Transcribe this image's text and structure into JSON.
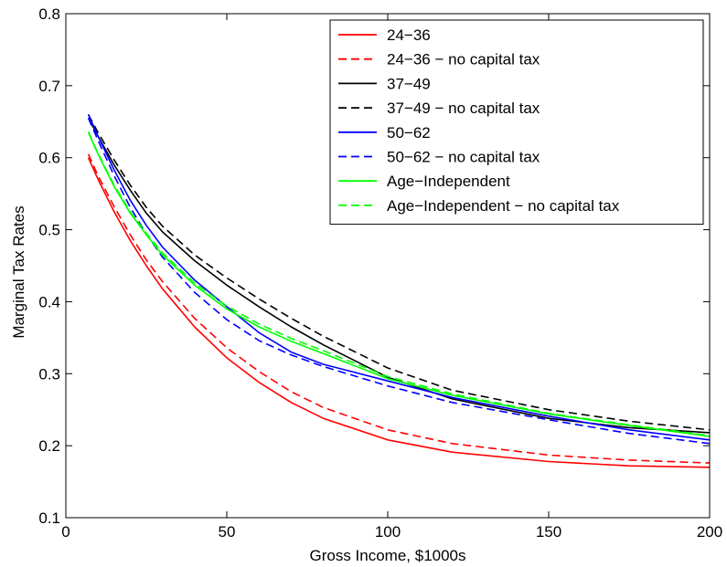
{
  "chart_data": {
    "type": "line",
    "title": "",
    "xlabel": "Gross Income, $1000s",
    "ylabel": "Marginal Tax Rates",
    "xlim": [
      0,
      200
    ],
    "ylim": [
      0.1,
      0.8
    ],
    "xticks": [
      0,
      50,
      100,
      150,
      200
    ],
    "yticks": [
      0.1,
      0.2,
      0.3,
      0.4,
      0.5,
      0.6,
      0.7,
      0.8
    ],
    "xtick_labels": [
      "0",
      "50",
      "100",
      "150",
      "200"
    ],
    "ytick_labels": [
      "0.1",
      "0.2",
      "0.3",
      "0.4",
      "0.5",
      "0.6",
      "0.7",
      "0.8"
    ],
    "grid": false,
    "legend_position": "top-right",
    "x": [
      7,
      10,
      15,
      20,
      25,
      30,
      40,
      50,
      60,
      70,
      80,
      100,
      120,
      150,
      175,
      200
    ],
    "series": [
      {
        "name": "24−36",
        "color": "#ff0000",
        "dash": "solid",
        "values": [
          0.6,
          0.57,
          0.525,
          0.485,
          0.45,
          0.418,
          0.365,
          0.322,
          0.288,
          0.26,
          0.238,
          0.208,
          0.191,
          0.178,
          0.172,
          0.17
        ]
      },
      {
        "name": "24−36 − no capital tax",
        "color": "#ff0000",
        "dash": "dashed",
        "values": [
          0.605,
          0.575,
          0.532,
          0.493,
          0.458,
          0.428,
          0.377,
          0.336,
          0.303,
          0.275,
          0.253,
          0.222,
          0.203,
          0.187,
          0.18,
          0.176
        ]
      },
      {
        "name": "37−49",
        "color": "#000000",
        "dash": "solid",
        "values": [
          0.655,
          0.63,
          0.59,
          0.555,
          0.523,
          0.497,
          0.457,
          0.423,
          0.393,
          0.365,
          0.34,
          0.295,
          0.265,
          0.238,
          0.225,
          0.218
        ]
      },
      {
        "name": "37−49 − no capital tax",
        "color": "#000000",
        "dash": "dashed",
        "values": [
          0.66,
          0.635,
          0.597,
          0.562,
          0.531,
          0.505,
          0.465,
          0.433,
          0.404,
          0.377,
          0.352,
          0.308,
          0.277,
          0.25,
          0.234,
          0.222
        ]
      },
      {
        "name": "50−62",
        "color": "#0000ff",
        "dash": "solid",
        "values": [
          0.66,
          0.63,
          0.583,
          0.541,
          0.506,
          0.476,
          0.43,
          0.393,
          0.357,
          0.33,
          0.313,
          0.29,
          0.267,
          0.241,
          0.222,
          0.208
        ]
      },
      {
        "name": "50−62 − no capital tax",
        "color": "#0000ff",
        "dash": "dashed",
        "values": [
          0.655,
          0.624,
          0.575,
          0.531,
          0.494,
          0.462,
          0.413,
          0.375,
          0.346,
          0.326,
          0.31,
          0.283,
          0.26,
          0.236,
          0.217,
          0.203
        ]
      },
      {
        "name": "Age−Independent",
        "color": "#00ff00",
        "dash": "solid",
        "values": [
          0.635,
          0.605,
          0.56,
          0.523,
          0.493,
          0.465,
          0.423,
          0.39,
          0.365,
          0.345,
          0.328,
          0.293,
          0.27,
          0.244,
          0.228,
          0.213
        ]
      },
      {
        "name": "Age−Independent − no capital tax",
        "color": "#00ff00",
        "dash": "dashed",
        "values": [
          0.636,
          0.606,
          0.562,
          0.525,
          0.495,
          0.468,
          0.426,
          0.394,
          0.369,
          0.349,
          0.332,
          0.296,
          0.272,
          0.245,
          0.229,
          0.214
        ]
      }
    ]
  }
}
